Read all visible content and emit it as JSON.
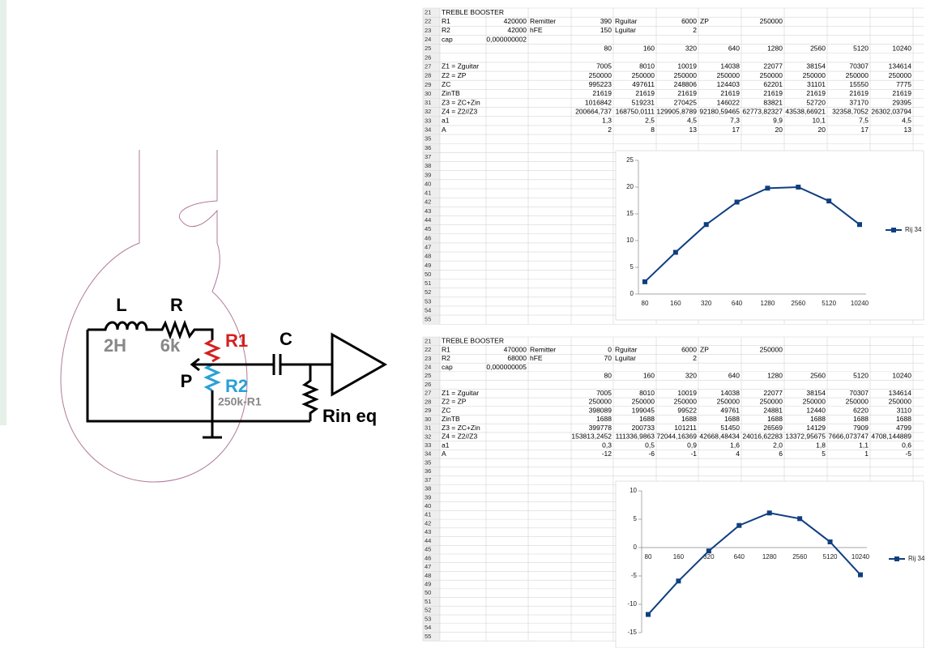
{
  "diagram": {
    "inductor": "L",
    "resistor": "R",
    "inductance": "2H",
    "resistance": "6k",
    "r1": "R1",
    "capacitor": "C",
    "wiper": "P",
    "r2": "R2",
    "r2_value": "250k-R1",
    "load": "Rin eq"
  },
  "sheets": [
    {
      "rows": [
        {
          "n": "21",
          "cells": [
            "TREBLE BOOSTER"
          ]
        },
        {
          "n": "22",
          "cells": [
            "R1",
            "420000",
            "Remitter",
            "390",
            "Rguitar",
            "6000",
            "ZP",
            "250000"
          ]
        },
        {
          "n": "23",
          "cells": [
            "R2",
            "42000",
            "hFE",
            "150",
            "Lguitar",
            "2"
          ]
        },
        {
          "n": "24",
          "cells": [
            "cap",
            "0,000000002"
          ]
        },
        {
          "n": "25",
          "cells": [
            null,
            null,
            null,
            "80",
            "160",
            "320",
            "640",
            "1280",
            "2560",
            "5120",
            "10240"
          ]
        },
        {
          "n": "26"
        },
        {
          "n": "27",
          "cells": [
            "Z1 = Zguitar",
            null,
            null,
            "7005",
            "8010",
            "10019",
            "14038",
            "22077",
            "38154",
            "70307",
            "134614"
          ]
        },
        {
          "n": "28",
          "cells": [
            "Z2 = ZP",
            null,
            null,
            "250000",
            "250000",
            "250000",
            "250000",
            "250000",
            "250000",
            "250000",
            "250000"
          ]
        },
        {
          "n": "29",
          "cells": [
            "ZC",
            null,
            null,
            "995223",
            "497611",
            "248806",
            "124403",
            "62201",
            "31101",
            "15550",
            "7775"
          ]
        },
        {
          "n": "30",
          "cells": [
            "ZinTB",
            null,
            null,
            "21619",
            "21619",
            "21619",
            "21619",
            "21619",
            "21619",
            "21619",
            "21619"
          ]
        },
        {
          "n": "31",
          "cells": [
            "Z3 = ZC+Zin",
            null,
            null,
            "1016842",
            "519231",
            "270425",
            "146022",
            "83821",
            "52720",
            "37170",
            "29395"
          ]
        },
        {
          "n": "32",
          "cells": [
            "Z4 = Z2//Z3",
            null,
            null,
            "200664,737",
            "168750,0111",
            "129905,8789",
            "92180,59465",
            "62773,82327",
            "43538,66921",
            "32358,7052",
            "26302,03794"
          ]
        },
        {
          "n": "33",
          "cells": [
            "a1",
            null,
            null,
            "1,3",
            "2,5",
            "4,5",
            "7,3",
            "9,9",
            "10,1",
            "7,5",
            "4,5"
          ]
        },
        {
          "n": "34",
          "cells": [
            "A",
            null,
            null,
            "2",
            "8",
            "13",
            "17",
            "20",
            "20",
            "17",
            "13"
          ]
        },
        {
          "n": "35"
        },
        {
          "n": "36"
        },
        {
          "n": "37"
        },
        {
          "n": "38"
        },
        {
          "n": "39"
        },
        {
          "n": "40"
        },
        {
          "n": "41"
        },
        {
          "n": "42"
        },
        {
          "n": "43"
        },
        {
          "n": "44"
        },
        {
          "n": "45"
        },
        {
          "n": "46"
        },
        {
          "n": "47"
        },
        {
          "n": "48"
        },
        {
          "n": "49"
        },
        {
          "n": "50"
        },
        {
          "n": "51"
        },
        {
          "n": "52"
        },
        {
          "n": "53"
        },
        {
          "n": "54"
        },
        {
          "n": "55"
        }
      ],
      "chart": {
        "type": "line",
        "categories": [
          80,
          160,
          320,
          640,
          1280,
          2560,
          5120,
          10240
        ],
        "series": [
          {
            "name": "Rij 34",
            "color": "#0f3f80",
            "values": [
              2.3,
              7.8,
              13,
              17.2,
              19.8,
              20,
              17.4,
              13
            ]
          }
        ],
        "ylim": [
          0,
          25
        ],
        "yticks": [
          0,
          5,
          10,
          15,
          20,
          25
        ]
      }
    },
    {
      "rows": [
        {
          "n": "21",
          "cells": [
            "TREBLE BOOSTER"
          ]
        },
        {
          "n": "22",
          "cells": [
            "R1",
            "470000",
            "Remitter",
            "0",
            "Rguitar",
            "6000",
            "ZP",
            "250000"
          ]
        },
        {
          "n": "23",
          "cells": [
            "R2",
            "68000",
            "hFE",
            "70",
            "Lguitar",
            "2"
          ]
        },
        {
          "n": "24",
          "cells": [
            "cap",
            "0,000000005"
          ]
        },
        {
          "n": "25",
          "cells": [
            null,
            null,
            null,
            "80",
            "160",
            "320",
            "640",
            "1280",
            "2560",
            "5120",
            "10240"
          ]
        },
        {
          "n": "26"
        },
        {
          "n": "27",
          "cells": [
            "Z1 = Zguitar",
            null,
            null,
            "7005",
            "8010",
            "10019",
            "14038",
            "22077",
            "38154",
            "70307",
            "134614"
          ]
        },
        {
          "n": "28",
          "cells": [
            "Z2 = ZP",
            null,
            null,
            "250000",
            "250000",
            "250000",
            "250000",
            "250000",
            "250000",
            "250000",
            "250000"
          ]
        },
        {
          "n": "29",
          "cells": [
            "ZC",
            null,
            null,
            "398089",
            "199045",
            "99522",
            "49761",
            "24881",
            "12440",
            "6220",
            "3110"
          ]
        },
        {
          "n": "30",
          "cells": [
            "ZinTB",
            null,
            null,
            "1688",
            "1688",
            "1688",
            "1688",
            "1688",
            "1688",
            "1688",
            "1688"
          ]
        },
        {
          "n": "31",
          "cells": [
            "Z3 = ZC+Zin",
            null,
            null,
            "399778",
            "200733",
            "101211",
            "51450",
            "26569",
            "14129",
            "7909",
            "4799"
          ]
        },
        {
          "n": "32",
          "cells": [
            "Z4 = Z2//Z3",
            null,
            null,
            "153813,2452",
            "111336,9863",
            "72044,16369",
            "42668,48434",
            "24016,62283",
            "13372,95675",
            "7666,073747",
            "4708,144889"
          ]
        },
        {
          "n": "33",
          "cells": [
            "a1",
            null,
            null,
            "0,3",
            "0,5",
            "0,9",
            "1,6",
            "2,0",
            "1,8",
            "1,1",
            "0,6"
          ]
        },
        {
          "n": "34",
          "cells": [
            "A",
            null,
            null,
            "-12",
            "-6",
            "-1",
            "4",
            "6",
            "5",
            "1",
            "-5"
          ]
        },
        {
          "n": "35"
        },
        {
          "n": "36"
        },
        {
          "n": "37"
        },
        {
          "n": "38"
        },
        {
          "n": "39"
        },
        {
          "n": "40"
        },
        {
          "n": "41"
        },
        {
          "n": "42"
        },
        {
          "n": "43"
        },
        {
          "n": "44"
        },
        {
          "n": "45"
        },
        {
          "n": "46"
        },
        {
          "n": "47"
        },
        {
          "n": "48"
        },
        {
          "n": "49"
        },
        {
          "n": "50"
        },
        {
          "n": "51"
        },
        {
          "n": "52"
        },
        {
          "n": "53"
        },
        {
          "n": "54"
        },
        {
          "n": "55"
        }
      ],
      "chart": {
        "type": "line",
        "categories": [
          80,
          160,
          320,
          640,
          1280,
          2560,
          5120,
          10240
        ],
        "series": [
          {
            "name": "Rij 34",
            "color": "#0f3f80",
            "values": [
              -11.8,
              -5.9,
              -0.6,
              3.9,
              6.1,
              5.1,
              1.0,
              -4.8
            ]
          }
        ],
        "ylim": [
          -15,
          10
        ],
        "yticks": [
          -15,
          -10,
          -5,
          0,
          5,
          10
        ]
      }
    }
  ]
}
